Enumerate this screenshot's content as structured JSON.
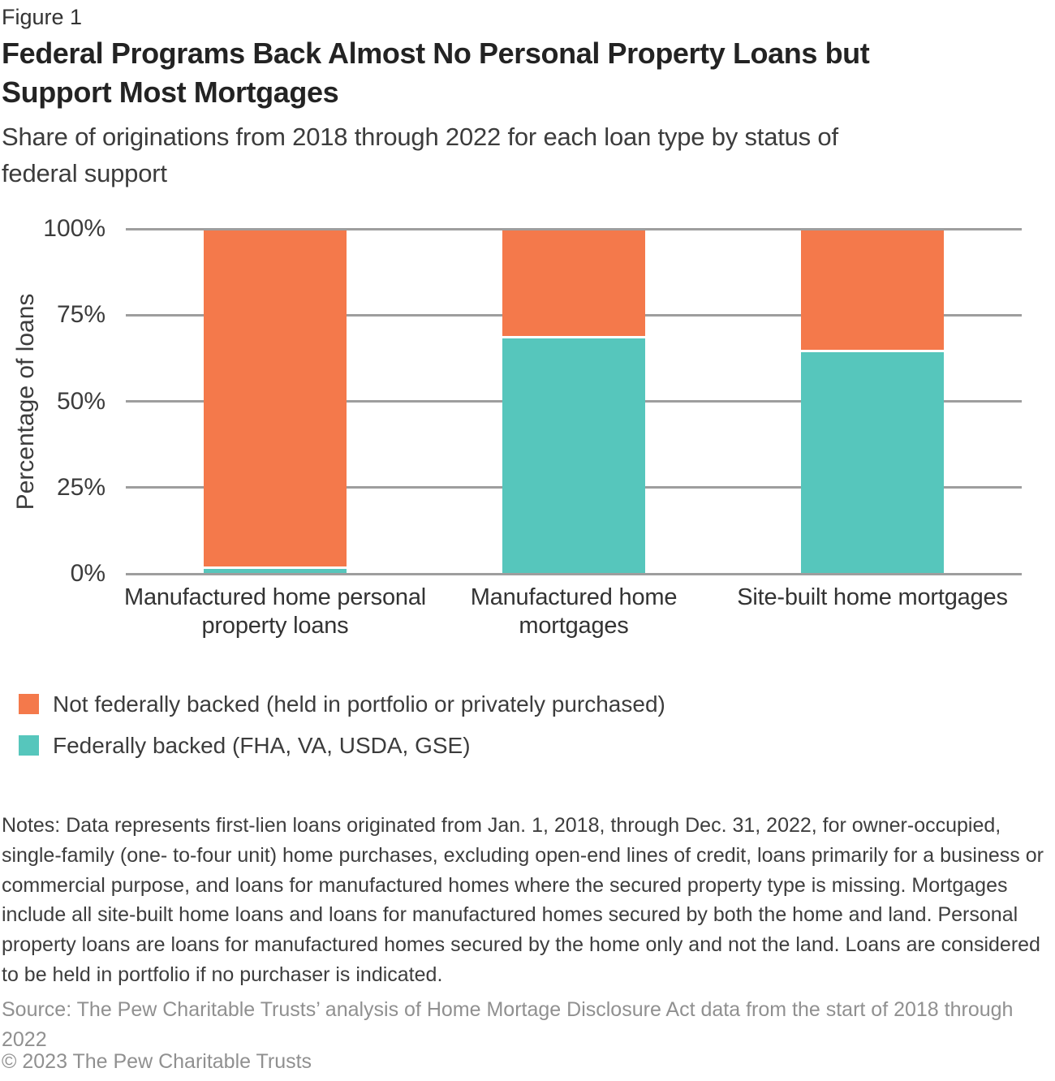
{
  "header": {
    "figure_label": "Figure 1",
    "title_lines": [
      "Federal Programs Back Almost No Personal Property Loans but",
      "Support Most Mortgages"
    ],
    "subtitle_lines": [
      "Share of originations from 2018 through 2022 for each loan type by status of",
      "federal support"
    ]
  },
  "chart_data": {
    "type": "bar",
    "stacked": true,
    "title": "Federal Programs Back Almost No Personal Property Loans but Support Most Mortgages",
    "subtitle": "Share of originations from 2018 through 2022 for each loan type by status of federal support",
    "categories": [
      "Manufactured home personal property loans",
      "Manufactured home mortgages",
      "Site-built home mortgages"
    ],
    "category_lines": [
      [
        "Manufactured home personal",
        "property loans"
      ],
      [
        "Manufactured home",
        "mortgages"
      ],
      [
        "Site-built home mortgages"
      ]
    ],
    "series": [
      {
        "name": "Not federally backed (held in portfolio or privately purchased)",
        "color": "#F4794B",
        "values": [
          98,
          31,
          35
        ]
      },
      {
        "name": "Federally backed (FHA, VA, USDA, GSE)",
        "color": "#56C6BC",
        "values": [
          2,
          69,
          65
        ]
      }
    ],
    "ylabel": "Percentage of loans",
    "yticks": [
      0,
      25,
      50,
      75,
      100
    ],
    "ytick_suffix": "%",
    "ylim": [
      0,
      100
    ],
    "grid": true,
    "gridline_color": "#9e9e9e",
    "legend_position": "below-chart"
  },
  "notes": {
    "text": "Notes: Data represents first-lien loans originated from Jan. 1, 2018, through Dec. 31, 2022, for owner-occupied, single-family (one- to-four unit) home purchases, excluding open-end lines of credit, loans primarily for a business or commercial purpose, and loans for manufactured homes where the secured property type is missing. Mortgages include all site-built home loans and loans for manufactured homes secured by both the home and land. Personal property loans are loans for manufactured homes secured by the home only and not the land. Loans are considered to be held in portfolio if no purchaser is indicated."
  },
  "source": {
    "text": "Source: The Pew Charitable Trusts’ analysis of Home Mortage Disclosure Act data from the start of 2018 through 2022"
  },
  "copyright": {
    "text": "© 2023 The Pew Charitable Trusts"
  }
}
